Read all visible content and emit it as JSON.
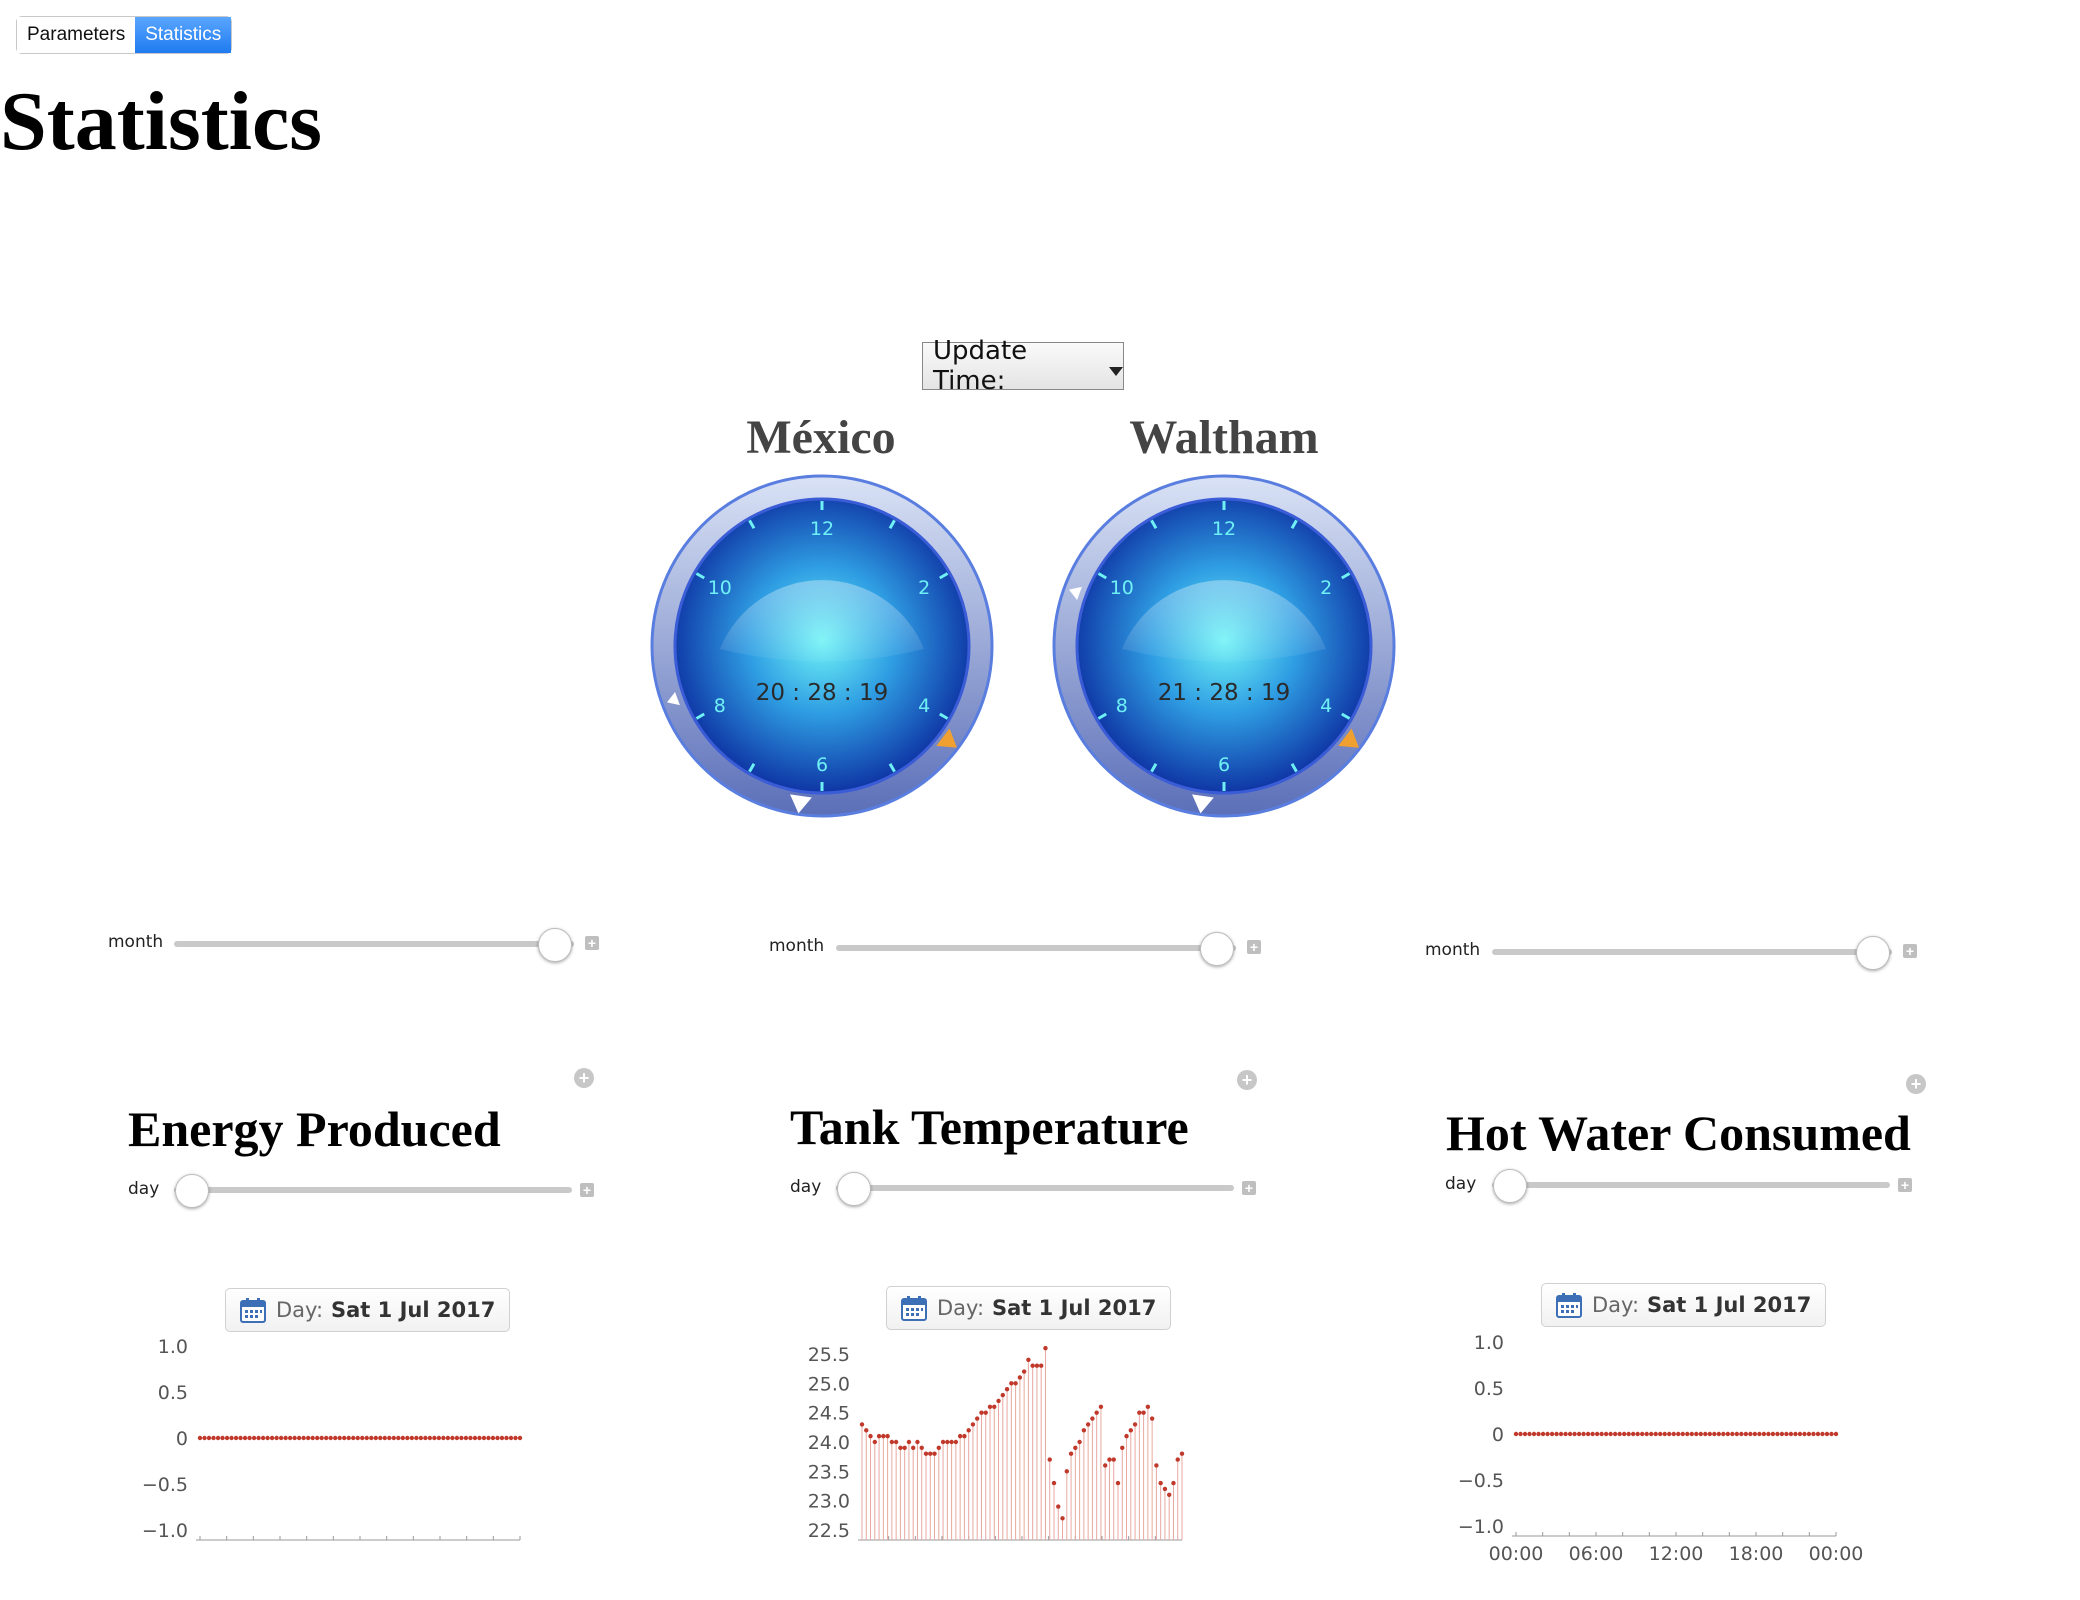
{
  "tabs": [
    {
      "label": "Parameters",
      "active": false
    },
    {
      "label": "Statistics",
      "active": true
    }
  ],
  "page_title": "Statistics",
  "update_time": {
    "label": "Update Time:"
  },
  "clocks": [
    {
      "city": "México",
      "time": "20 : 28 : 19",
      "numerals": [
        "12",
        "2",
        "4",
        "6",
        "8",
        "10"
      ]
    },
    {
      "city": "Waltham",
      "time": "21 : 28 : 19",
      "numerals": [
        "12",
        "2",
        "4",
        "6",
        "8",
        "10"
      ]
    }
  ],
  "month_sliders": [
    {
      "label": "month",
      "value_fraction": 0.96
    },
    {
      "label": "month",
      "value_fraction": 0.96
    },
    {
      "label": "month",
      "value_fraction": 0.96
    }
  ],
  "panels": [
    {
      "title": "Energy Produced",
      "day_label": "day",
      "day_value_fraction": 0.0,
      "date_chip": {
        "prefix": "Day:",
        "value": "Sat 1 Jul 2017"
      }
    },
    {
      "title": "Tank Temperature",
      "day_label": "day",
      "day_value_fraction": 0.0,
      "date_chip": {
        "prefix": "Day:",
        "value": "Sat 1 Jul 2017"
      }
    },
    {
      "title": "Hot Water Consumed",
      "day_label": "day",
      "day_value_fraction": 0.0,
      "date_chip": {
        "prefix": "Day:",
        "value": "Sat 1 Jul 2017"
      }
    }
  ],
  "colors": {
    "accent": "#1f7bf0",
    "series": "#c0392b",
    "clock_face": "#1a4fc0",
    "clock_highlight": "#6ff0f5"
  },
  "chart_data": [
    {
      "type": "scatter",
      "title": "",
      "xlabel": "",
      "ylabel": "",
      "ylim": [
        -1.0,
        1.0
      ],
      "yticks": [
        "1.0",
        "0.5",
        "0",
        "−0.5",
        "−1.0"
      ],
      "x_count": 72,
      "values": [
        0,
        0,
        0,
        0,
        0,
        0,
        0,
        0,
        0,
        0,
        0,
        0,
        0,
        0,
        0,
        0,
        0,
        0,
        0,
        0,
        0,
        0,
        0,
        0,
        0,
        0,
        0,
        0,
        0,
        0,
        0,
        0,
        0,
        0,
        0,
        0,
        0,
        0,
        0,
        0,
        0,
        0,
        0,
        0,
        0,
        0,
        0,
        0,
        0,
        0,
        0,
        0,
        0,
        0,
        0,
        0,
        0,
        0,
        0,
        0,
        0,
        0,
        0,
        0,
        0,
        0,
        0,
        0,
        0,
        0,
        0,
        0
      ]
    },
    {
      "type": "scatter",
      "title": "",
      "xlabel": "",
      "ylabel": "",
      "ylim": [
        22.5,
        25.5
      ],
      "yticks": [
        "25.5",
        "25.0",
        "24.5",
        "24.0",
        "23.5",
        "23.0",
        "22.5"
      ],
      "values": [
        24.3,
        24.2,
        24.1,
        24.0,
        24.1,
        24.1,
        24.1,
        24.0,
        24.0,
        23.9,
        23.9,
        24.0,
        23.9,
        24.0,
        23.9,
        23.8,
        23.8,
        23.8,
        23.9,
        24.0,
        24.0,
        24.0,
        24.0,
        24.1,
        24.1,
        24.2,
        24.3,
        24.4,
        24.5,
        24.5,
        24.6,
        24.6,
        24.7,
        24.8,
        24.9,
        25.0,
        25.0,
        25.1,
        25.2,
        25.4,
        25.3,
        25.3,
        25.3,
        25.6,
        23.7,
        23.3,
        22.9,
        22.7,
        23.5,
        23.8,
        23.9,
        24.0,
        24.2,
        24.3,
        24.4,
        24.5,
        24.6,
        23.6,
        23.7,
        23.7,
        23.3,
        23.9,
        24.1,
        24.2,
        24.3,
        24.5,
        24.5,
        24.6,
        24.4,
        23.6,
        23.3,
        23.2,
        23.1,
        23.3,
        23.7,
        23.8
      ]
    },
    {
      "type": "scatter",
      "title": "",
      "xlabel": "",
      "ylabel": "",
      "ylim": [
        -1.0,
        1.0
      ],
      "yticks": [
        "1.0",
        "0.5",
        "0",
        "−0.5",
        "−1.0"
      ],
      "xticks": [
        "00:00",
        "06:00",
        "12:00",
        "18:00",
        "00:00"
      ],
      "x_count": 72,
      "values": [
        0,
        0,
        0,
        0,
        0,
        0,
        0,
        0,
        0,
        0,
        0,
        0,
        0,
        0,
        0,
        0,
        0,
        0,
        0,
        0,
        0,
        0,
        0,
        0,
        0,
        0,
        0,
        0,
        0,
        0,
        0,
        0,
        0,
        0,
        0,
        0,
        0,
        0,
        0,
        0,
        0,
        0,
        0,
        0,
        0,
        0,
        0,
        0,
        0,
        0,
        0,
        0,
        0,
        0,
        0,
        0,
        0,
        0,
        0,
        0,
        0,
        0,
        0,
        0,
        0,
        0,
        0,
        0,
        0,
        0,
        0,
        0
      ]
    }
  ]
}
